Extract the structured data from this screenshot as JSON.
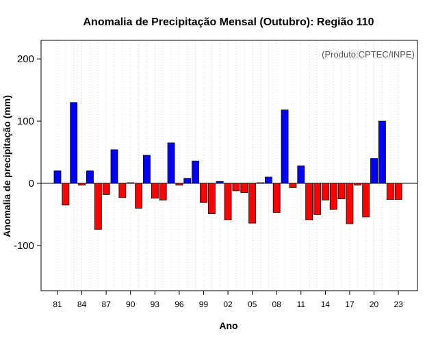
{
  "chart_data": {
    "type": "bar",
    "title": "Anomalia de Precipitação Mensal (Outubro): Região 110",
    "xlabel": "Ano",
    "ylabel": "Anomalia de precipitação (mm)",
    "credit": "(Produto:CPTEC/INPE)",
    "ylim": [
      -175,
      230
    ],
    "yticks": [
      -100,
      0,
      100,
      200
    ],
    "xtick_labels": [
      "81",
      "84",
      "87",
      "90",
      "93",
      "96",
      "99",
      "02",
      "05",
      "08",
      "11",
      "14",
      "17",
      "20",
      "23"
    ],
    "xtick_years": [
      1981,
      1984,
      1987,
      1990,
      1993,
      1996,
      1999,
      2002,
      2005,
      2008,
      2011,
      2014,
      2017,
      2020,
      2023
    ],
    "grid": "vertical-dotted",
    "colors": {
      "positive": "#0000ff",
      "negative": "#ff0000",
      "zero_line": "#000000",
      "grid": "#d3d3d3"
    },
    "categories": [
      1981,
      1982,
      1983,
      1984,
      1985,
      1986,
      1987,
      1988,
      1989,
      1990,
      1991,
      1992,
      1993,
      1994,
      1995,
      1996,
      1997,
      1998,
      1999,
      2000,
      2001,
      2002,
      2003,
      2004,
      2005,
      2006,
      2007,
      2008,
      2009,
      2010,
      2011,
      2012,
      2013,
      2014,
      2015,
      2016,
      2017,
      2018,
      2019,
      2020,
      2021,
      2022,
      2023
    ],
    "values": [
      20,
      -35,
      130,
      -3,
      20,
      -74,
      -18,
      54,
      -23,
      1,
      -40,
      45,
      -24,
      -27,
      65,
      -3,
      8,
      36,
      -31,
      -49,
      3,
      -59,
      -12,
      -15,
      -64,
      1,
      10,
      -47,
      118,
      -7,
      28,
      -59,
      -50,
      -27,
      -42,
      -25,
      -65,
      -3,
      -54,
      40,
      100,
      -26,
      -26
    ]
  }
}
